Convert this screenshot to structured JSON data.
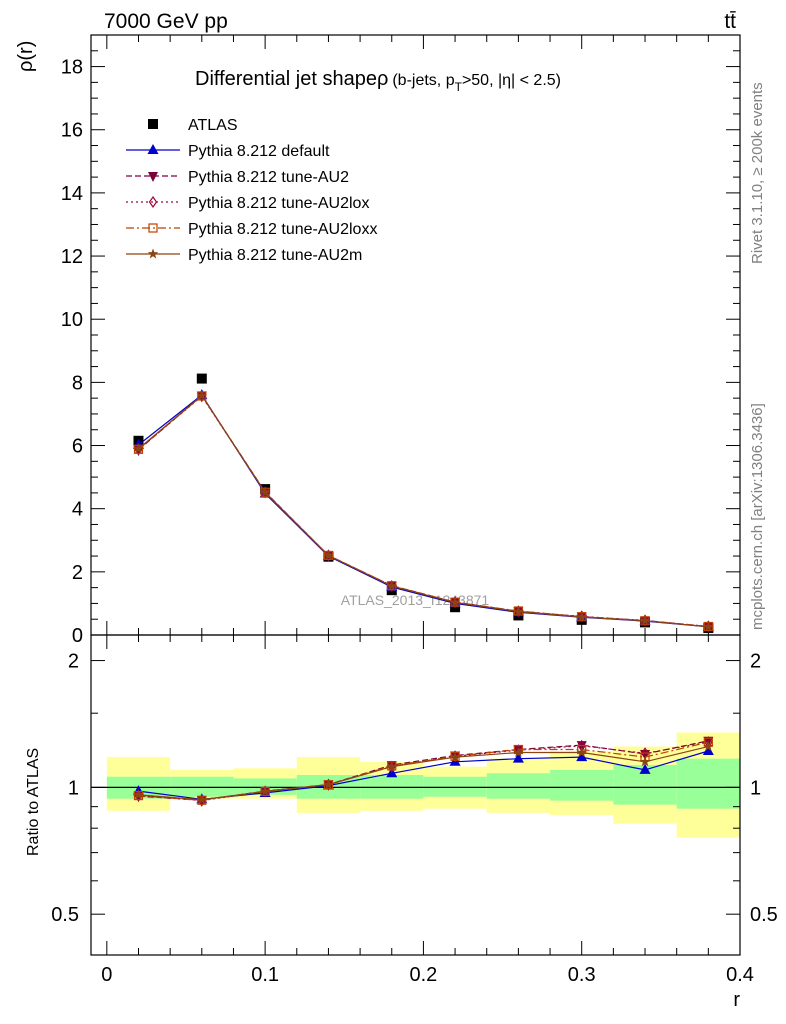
{
  "header": {
    "left": "7000 GeV pp",
    "right": "tt̄"
  },
  "side_labels": {
    "rivet": "Rivet 3.1.10, ≥ 200k events",
    "mcplots": "mcplots.cern.ch [arXiv:1306.3436]"
  },
  "watermark": "ATLAS_2013_I1243871",
  "colors": {
    "atlas": "#000000",
    "default": "#0000cc",
    "au2": "#7a003c",
    "au2lox": "#a0003a",
    "au2loxx": "#c04000",
    "au2m": "#8b4513",
    "band_inner": "#99ff99",
    "band_outer": "#ffff99"
  },
  "chart_data": [
    {
      "type": "line",
      "panel": "main",
      "title_main": "Differential jet shapeρ",
      "title_detail_a": "(b-jets, p",
      "title_detail_sub": "T",
      "title_detail_b": ">50, |η| < 2.5)",
      "ylabel": "ρ(r)",
      "xlim": [
        -0.01,
        0.4
      ],
      "ylim": [
        0,
        19
      ],
      "yticks": [
        0,
        2,
        4,
        6,
        8,
        10,
        12,
        14,
        16,
        18
      ],
      "ytick_labels": [
        "0",
        "2",
        "4",
        "6",
        "8",
        "10",
        "12",
        "14",
        "16",
        "18"
      ],
      "legend_position": "top-left",
      "x": [
        0.02,
        0.06,
        0.1,
        0.14,
        0.18,
        0.22,
        0.26,
        0.3,
        0.34,
        0.38
      ],
      "series": [
        {
          "key": "atlas",
          "name": "ATLAS",
          "marker": "square",
          "line": "none",
          "values": [
            6.15,
            8.12,
            4.62,
            2.48,
            1.42,
            0.88,
            0.62,
            0.48,
            0.4,
            0.22
          ]
        },
        {
          "key": "default",
          "name": "Pythia 8.212 default",
          "marker": "triangle",
          "line": "solid",
          "values": [
            6.02,
            7.6,
            4.48,
            2.5,
            1.52,
            1.0,
            0.72,
            0.56,
            0.44,
            0.26
          ]
        },
        {
          "key": "au2",
          "name": "Pythia 8.212 tune-AU2",
          "marker": "triangle-down",
          "line": "dashed",
          "values": [
            5.86,
            7.58,
            4.53,
            2.52,
            1.56,
            1.04,
            0.75,
            0.58,
            0.46,
            0.27
          ]
        },
        {
          "key": "au2lox",
          "name": "Pythia 8.212 tune-AU2lox",
          "marker": "diamond-open",
          "line": "dotted",
          "values": [
            5.88,
            7.56,
            4.52,
            2.52,
            1.55,
            1.04,
            0.75,
            0.59,
            0.46,
            0.27
          ]
        },
        {
          "key": "au2loxx",
          "name": "Pythia 8.212 tune-AU2loxx",
          "marker": "square-open",
          "line": "dashdot",
          "values": [
            5.88,
            7.57,
            4.52,
            2.52,
            1.56,
            1.04,
            0.76,
            0.58,
            0.45,
            0.27
          ]
        },
        {
          "key": "au2m",
          "name": "Pythia 8.212 tune-AU2m",
          "marker": "star",
          "line": "solid",
          "values": [
            5.9,
            7.58,
            4.52,
            2.52,
            1.55,
            1.03,
            0.74,
            0.57,
            0.45,
            0.26
          ]
        }
      ]
    },
    {
      "type": "line",
      "panel": "ratio",
      "ylabel": "Ratio to ATLAS",
      "xlabel": "r",
      "xlim": [
        -0.01,
        0.4
      ],
      "ylim": [
        0.4,
        2.3
      ],
      "log_y": true,
      "yticks": [
        0.5,
        1,
        2
      ],
      "ytick_labels": [
        "0.5",
        "1",
        "2"
      ],
      "xticks": [
        0,
        0.1,
        0.2,
        0.3,
        0.4
      ],
      "xtick_labels": [
        "0",
        "0.1",
        "0.2",
        "0.3",
        "0.4"
      ],
      "bins": [
        [
          0.0,
          0.04
        ],
        [
          0.04,
          0.08
        ],
        [
          0.08,
          0.12
        ],
        [
          0.12,
          0.16
        ],
        [
          0.16,
          0.2
        ],
        [
          0.2,
          0.24
        ],
        [
          0.24,
          0.28
        ],
        [
          0.28,
          0.32
        ],
        [
          0.32,
          0.36
        ],
        [
          0.36,
          0.4
        ]
      ],
      "band_inner": [
        [
          0.94,
          1.06
        ],
        [
          0.95,
          1.06
        ],
        [
          0.96,
          1.05
        ],
        [
          0.94,
          1.07
        ],
        [
          0.94,
          1.07
        ],
        [
          0.95,
          1.06
        ],
        [
          0.94,
          1.08
        ],
        [
          0.93,
          1.1
        ],
        [
          0.91,
          1.13
        ],
        [
          0.89,
          1.17
        ]
      ],
      "band_outer": [
        [
          0.88,
          1.18
        ],
        [
          0.94,
          1.1
        ],
        [
          0.94,
          1.11
        ],
        [
          0.87,
          1.18
        ],
        [
          0.88,
          1.15
        ],
        [
          0.89,
          1.12
        ],
        [
          0.87,
          1.17
        ],
        [
          0.86,
          1.22
        ],
        [
          0.82,
          1.25
        ],
        [
          0.76,
          1.35
        ]
      ],
      "x": [
        0.02,
        0.06,
        0.1,
        0.14,
        0.18,
        0.22,
        0.26,
        0.3,
        0.34,
        0.38
      ],
      "series": [
        {
          "key": "default",
          "marker": "triangle",
          "line": "solid",
          "values": [
            0.98,
            0.937,
            0.97,
            1.01,
            1.08,
            1.15,
            1.17,
            1.18,
            1.1,
            1.22
          ]
        },
        {
          "key": "au2",
          "marker": "triangle-down",
          "line": "dashed",
          "values": [
            0.953,
            0.933,
            0.98,
            1.015,
            1.13,
            1.19,
            1.23,
            1.26,
            1.2,
            1.29
          ]
        },
        {
          "key": "au2lox",
          "marker": "diamond-open",
          "line": "dotted",
          "values": [
            0.956,
            0.93,
            0.978,
            1.015,
            1.12,
            1.185,
            1.225,
            1.255,
            1.205,
            1.28
          ]
        },
        {
          "key": "au2loxx",
          "marker": "square-open",
          "line": "dashdot",
          "values": [
            0.956,
            0.932,
            0.978,
            1.015,
            1.125,
            1.185,
            1.23,
            1.23,
            1.18,
            1.28
          ]
        },
        {
          "key": "au2m",
          "marker": "star",
          "line": "solid",
          "values": [
            0.96,
            0.935,
            0.978,
            1.015,
            1.12,
            1.18,
            1.21,
            1.21,
            1.15,
            1.25
          ]
        }
      ]
    }
  ]
}
